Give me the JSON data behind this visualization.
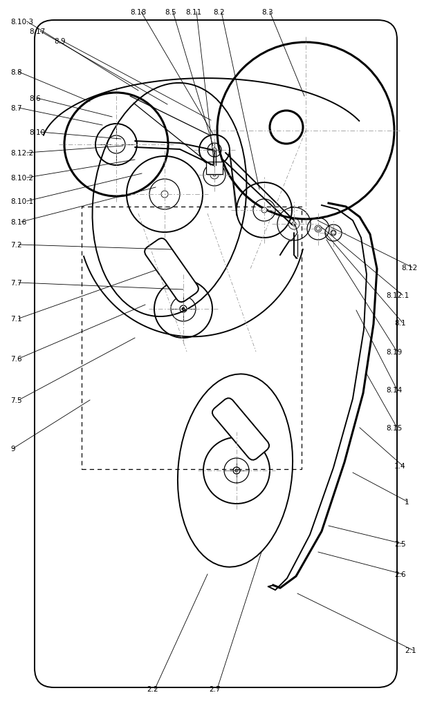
{
  "fig_width": 6.06,
  "fig_height": 10.0,
  "bg_color": "#ffffff",
  "line_color": "#000000",
  "gray": "#999999",
  "annotations": [
    [
      "8.10.3",
      5,
      978
    ],
    [
      "8.17",
      32,
      964
    ],
    [
      "8.9",
      68,
      950
    ],
    [
      "8.8",
      5,
      905
    ],
    [
      "8.6",
      32,
      867
    ],
    [
      "8.7",
      5,
      853
    ],
    [
      "8.10",
      32,
      818
    ],
    [
      "8.12.2",
      5,
      788
    ],
    [
      "8.10.2",
      5,
      752
    ],
    [
      "8.10.1",
      5,
      718
    ],
    [
      "8.16",
      5,
      688
    ],
    [
      "7.2",
      5,
      655
    ],
    [
      "7.7",
      5,
      600
    ],
    [
      "7.1",
      5,
      548
    ],
    [
      "7.6",
      5,
      490
    ],
    [
      "7.5",
      5,
      430
    ],
    [
      "9",
      5,
      360
    ],
    [
      "8.18",
      178,
      992
    ],
    [
      "8.5",
      228,
      992
    ],
    [
      "8.11",
      258,
      992
    ],
    [
      "8.2",
      298,
      992
    ],
    [
      "8.3",
      368,
      992
    ],
    [
      "8.12",
      570,
      622
    ],
    [
      "8.12.1",
      548,
      582
    ],
    [
      "8.1",
      560,
      542
    ],
    [
      "8.19",
      548,
      500
    ],
    [
      "8.14",
      548,
      445
    ],
    [
      "8.15",
      548,
      390
    ],
    [
      "1.4",
      560,
      335
    ],
    [
      "1",
      575,
      283
    ],
    [
      "2.5",
      560,
      222
    ],
    [
      "2.6",
      560,
      178
    ],
    [
      "2.1",
      575,
      68
    ],
    [
      "2.2",
      202,
      12
    ],
    [
      "2.7",
      292,
      12
    ]
  ]
}
